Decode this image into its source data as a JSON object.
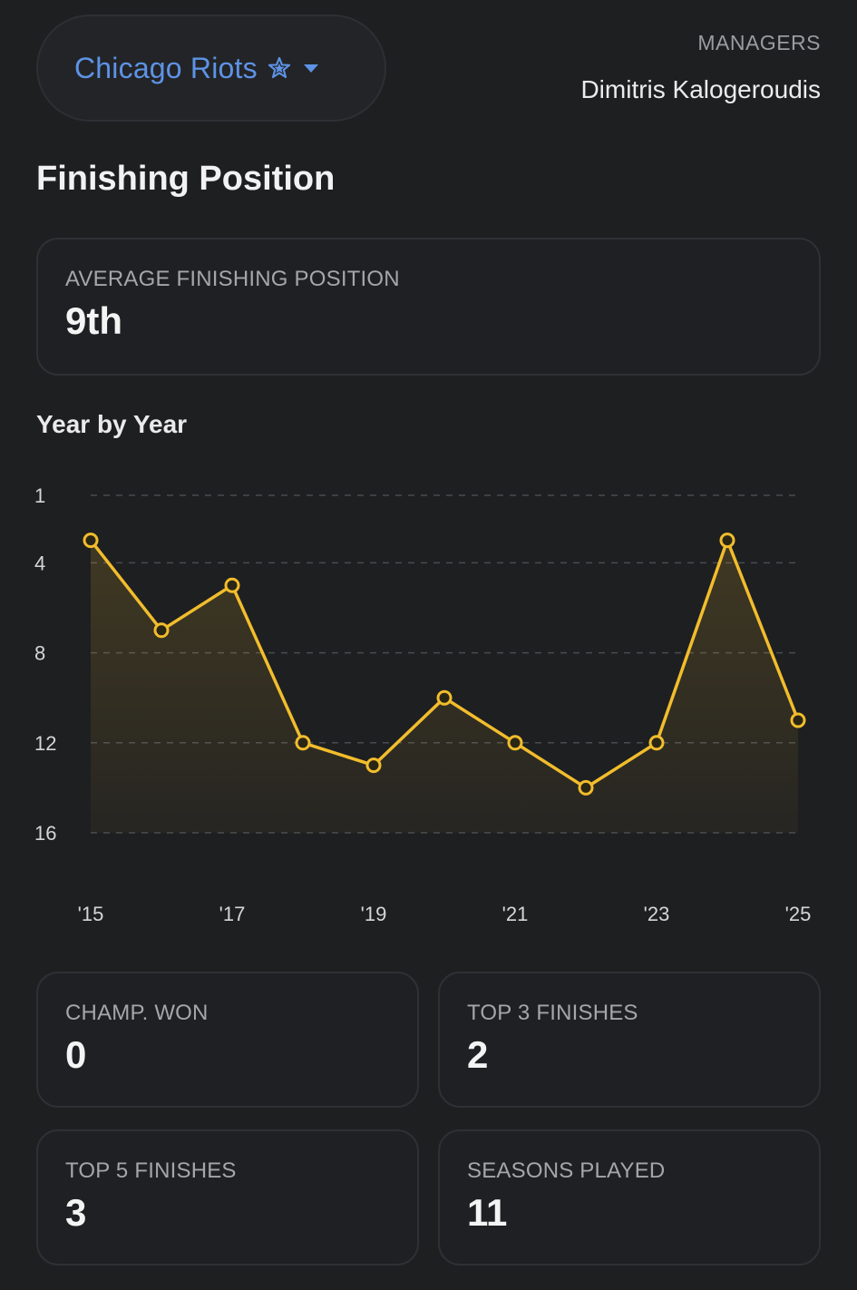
{
  "header": {
    "team_name": "Chicago Riots",
    "managers_label": "MANAGERS",
    "manager_name": "Dimitris Kalogeroudis",
    "star_icon": "star-icon",
    "caret_icon": "caret-down-icon"
  },
  "finishing": {
    "title": "Finishing Position",
    "avg_label": "AVERAGE FINISHING POSITION",
    "avg_value": "9th"
  },
  "year_by_year": {
    "title": "Year by Year"
  },
  "stats": [
    {
      "label": "CHAMP. WON",
      "value": "0"
    },
    {
      "label": "TOP 3 FINISHES",
      "value": "2"
    },
    {
      "label": "TOP 5 FINISHES",
      "value": "3"
    },
    {
      "label": "SEASONS PLAYED",
      "value": "11"
    }
  ],
  "colors": {
    "accent_line": "#f2bd2c",
    "team_blue": "#5d93e6",
    "background": "#1e1f21"
  },
  "chart_data": {
    "type": "line",
    "x": [
      "'15",
      "'16",
      "'17",
      "'18",
      "'19",
      "'20",
      "'21",
      "'22",
      "'23",
      "'24",
      "'25"
    ],
    "x_tick_labels": [
      "'15",
      "'17",
      "'19",
      "'21",
      "'23",
      "'25"
    ],
    "series": [
      {
        "values": [
          3,
          7,
          5,
          12,
          13,
          10,
          12,
          14,
          12,
          3,
          11
        ]
      }
    ],
    "y_ticks": [
      1,
      4,
      8,
      12,
      16
    ],
    "ylim": [
      1,
      16
    ],
    "y_inverted": true,
    "grid": true,
    "title": "Year by Year"
  }
}
